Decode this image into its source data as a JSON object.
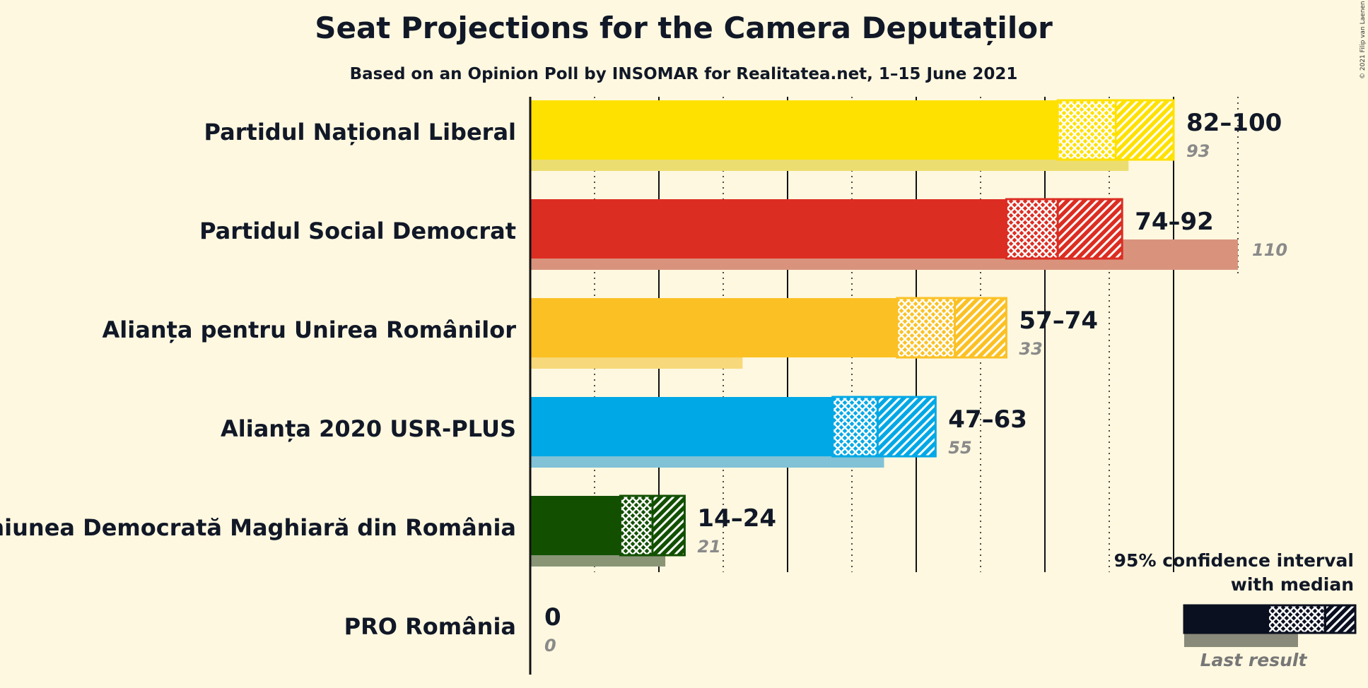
{
  "title": "Seat Projections for the Camera Deputaților",
  "subtitle": "Based on an Opinion Poll by INSOMAR for Realitatea.net, 1–15 June 2021",
  "copyright": "© 2021 Filip van Laenen",
  "legend": {
    "title_line1": "95% confidence interval",
    "title_line2": "with median",
    "last_result": "Last result"
  },
  "chart_data": {
    "type": "bar",
    "orientation": "horizontal",
    "xlim": [
      0,
      110
    ],
    "grid": true,
    "legend_position": "bottom-right",
    "parties": [
      {
        "name": "Partidul Național Liberal",
        "low": 82,
        "median": 91,
        "high": 100,
        "range_label": "82–100",
        "last": 93,
        "last_label": "93",
        "color": "#ffe100",
        "last_color": "#ecdd70"
      },
      {
        "name": "Partidul Social Democrat",
        "low": 74,
        "median": 82,
        "high": 92,
        "range_label": "74–92",
        "last": 110,
        "last_label": "110",
        "color": "#dc2d22",
        "last_color": "#d9937d"
      },
      {
        "name": "Alianța pentru Unirea Românilor",
        "low": 57,
        "median": 66,
        "high": 74,
        "range_label": "57–74",
        "last": 33,
        "last_label": "33",
        "color": "#fbc124",
        "last_color": "#f7d87a"
      },
      {
        "name": "Alianța 2020 USR-PLUS",
        "low": 47,
        "median": 54,
        "high": 63,
        "range_label": "47–63",
        "last": 55,
        "last_label": "55",
        "color": "#00a8e6",
        "last_color": "#81c2d6"
      },
      {
        "name": "Uniunea Democrată Maghiară din România",
        "low": 14,
        "median": 19,
        "high": 24,
        "range_label": "14–24",
        "last": 21,
        "last_label": "21",
        "color": "#125000",
        "last_color": "#8a9576"
      },
      {
        "name": "PRO România",
        "low": 0,
        "median": 0,
        "high": 0,
        "range_label": "0",
        "last": 0,
        "last_label": "0",
        "color": "#444444",
        "last_color": "#999999"
      }
    ]
  }
}
